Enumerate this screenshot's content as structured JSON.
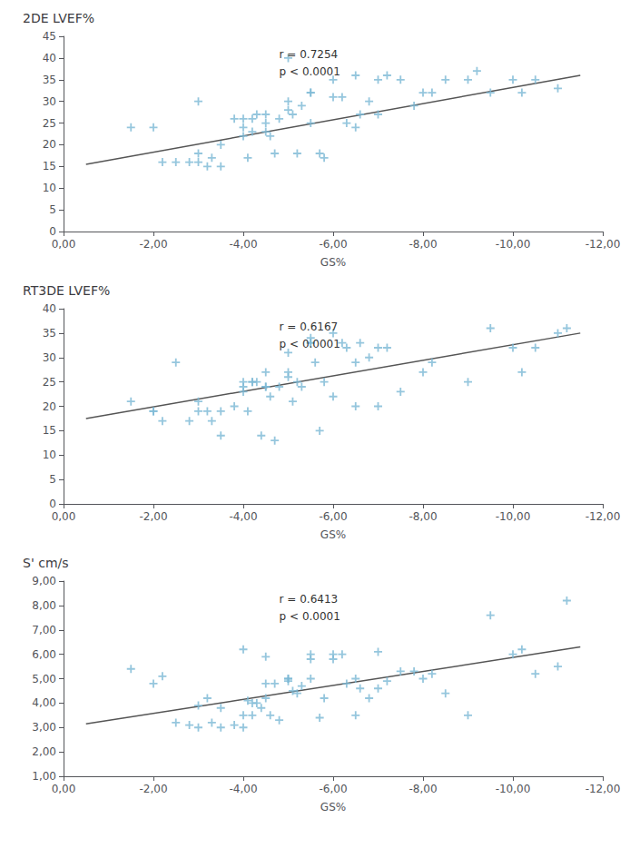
{
  "chart_data": [
    {
      "type": "scatter",
      "title": "2DE LVEF%",
      "xlabel": "GS%",
      "annotations": [
        "r = 0.7254",
        "p < 0.0001"
      ],
      "xlim": [
        0,
        -12
      ],
      "xticks": [
        {
          "value": 0,
          "label": "0,00"
        },
        {
          "value": -2,
          "label": "-2,00"
        },
        {
          "value": -4,
          "label": "-4,00"
        },
        {
          "value": -6,
          "label": "-6,00"
        },
        {
          "value": -8,
          "label": "-8,00"
        },
        {
          "value": -10,
          "label": "-10,00"
        },
        {
          "value": -12,
          "label": "-12,00"
        }
      ],
      "ylim": [
        0,
        45
      ],
      "yticks": [
        0,
        5,
        10,
        15,
        20,
        25,
        30,
        35,
        40,
        45
      ],
      "grid": false,
      "series": [
        {
          "type": "scatter",
          "marker": "plus",
          "color": "#7ab8d4",
          "x": [
            -1.5,
            -2.0,
            -2.2,
            -2.5,
            -2.8,
            -3.0,
            -3.0,
            -3.2,
            -3.3,
            -3.5,
            -3.8,
            -4.0,
            -4.0,
            -4.1,
            -4.2,
            -4.3,
            -4.5,
            -4.5,
            -4.6,
            -4.7,
            -4.8,
            -5.0,
            -5.0,
            -5.1,
            -5.2,
            -5.3,
            -5.5,
            -5.5,
            -5.7,
            -5.8,
            -6.0,
            -6.2,
            -6.3,
            -6.5,
            -6.6,
            -6.8,
            -7.0,
            -7.2,
            -7.5,
            -7.8,
            -8.0,
            -8.2,
            -8.5,
            -9.0,
            -9.2,
            -9.5,
            -10.0,
            -10.2,
            -10.5,
            -11.0,
            -3.5,
            -4.0,
            -4.5,
            -5.0,
            -5.5,
            -6.0,
            -6.5,
            -7.0,
            -3.0,
            -4.2
          ],
          "values": [
            24,
            24,
            16,
            16,
            16,
            16,
            18,
            15,
            17,
            15,
            26,
            26,
            24,
            17,
            26,
            27,
            27,
            25,
            22,
            18,
            26,
            28,
            30,
            27,
            18,
            29,
            32,
            25,
            18,
            17,
            35,
            31,
            25,
            36,
            27,
            30,
            35,
            36,
            35,
            29,
            32,
            32,
            35,
            35,
            37,
            32,
            35,
            32,
            35,
            33,
            20,
            22,
            23,
            40,
            32,
            31,
            24,
            27,
            30,
            23
          ]
        },
        {
          "type": "line",
          "color": "#555555",
          "x": [
            -0.5,
            -11.5
          ],
          "values": [
            15.5,
            36.0
          ]
        }
      ]
    },
    {
      "type": "scatter",
      "title": "RT3DE LVEF%",
      "xlabel": "GS%",
      "annotations": [
        "r = 0.6167",
        "p < 0.0001"
      ],
      "xlim": [
        0,
        -12
      ],
      "xticks": [
        {
          "value": 0,
          "label": "0,00"
        },
        {
          "value": -2,
          "label": "-2,00"
        },
        {
          "value": -4,
          "label": "-4,00"
        },
        {
          "value": -6,
          "label": "-6,00"
        },
        {
          "value": -8,
          "label": "-8,00"
        },
        {
          "value": -10,
          "label": "-10,00"
        },
        {
          "value": -12,
          "label": "-12,00"
        }
      ],
      "ylim": [
        0,
        40
      ],
      "yticks": [
        0,
        5,
        10,
        15,
        20,
        25,
        30,
        35,
        40
      ],
      "grid": false,
      "series": [
        {
          "type": "scatter",
          "marker": "plus",
          "color": "#7ab8d4",
          "x": [
            -1.5,
            -2.0,
            -2.0,
            -2.2,
            -2.5,
            -2.8,
            -3.0,
            -3.2,
            -3.3,
            -3.5,
            -3.8,
            -4.0,
            -4.0,
            -4.1,
            -4.2,
            -4.3,
            -4.4,
            -4.5,
            -4.5,
            -4.6,
            -4.7,
            -4.8,
            -5.0,
            -5.0,
            -5.1,
            -5.2,
            -5.3,
            -5.5,
            -5.5,
            -5.6,
            -5.7,
            -5.8,
            -6.0,
            -6.2,
            -6.3,
            -6.5,
            -6.6,
            -6.8,
            -7.0,
            -7.2,
            -7.5,
            -8.0,
            -8.2,
            -9.0,
            -9.5,
            -10.0,
            -10.2,
            -10.5,
            -11.0,
            -11.2,
            -3.5,
            -4.0,
            -4.5,
            -5.0,
            -5.5,
            -6.0,
            -6.5,
            -7.0,
            -3.0,
            -4.2
          ],
          "values": [
            21,
            19,
            19,
            17,
            29,
            17,
            21,
            19,
            17,
            19,
            20,
            24,
            23,
            19,
            25,
            25,
            14,
            24,
            24,
            22,
            13,
            24,
            31,
            27,
            21,
            25,
            24,
            33,
            34,
            29,
            15,
            25,
            35,
            33,
            32,
            29,
            33,
            30,
            32,
            32,
            23,
            27,
            29,
            25,
            36,
            32,
            27,
            32,
            35,
            36,
            14,
            25,
            27,
            26,
            33,
            22,
            20,
            20,
            19,
            25
          ]
        },
        {
          "type": "line",
          "color": "#555555",
          "x": [
            -0.5,
            -11.5
          ],
          "values": [
            17.5,
            35.0
          ]
        }
      ]
    },
    {
      "type": "scatter",
      "title": "S' cm/s",
      "xlabel": "GS%",
      "annotations": [
        "r = 0.6413",
        "p < 0.0001"
      ],
      "xlim": [
        0,
        -12
      ],
      "xticks": [
        {
          "value": 0,
          "label": "0,00"
        },
        {
          "value": -2,
          "label": "-2,00"
        },
        {
          "value": -4,
          "label": "-4,00"
        },
        {
          "value": -6,
          "label": "-6,00"
        },
        {
          "value": -8,
          "label": "-8,00"
        },
        {
          "value": -10,
          "label": "-10,00"
        },
        {
          "value": -12,
          "label": "-12,00"
        }
      ],
      "ylim": [
        1,
        9
      ],
      "yticks": [
        {
          "value": 1.0,
          "label": "1,00"
        },
        {
          "value": 2.0,
          "label": "2,00"
        },
        {
          "value": 3.0,
          "label": "3,00"
        },
        {
          "value": 4.0,
          "label": "4,00"
        },
        {
          "value": 5.0,
          "label": "5,00"
        },
        {
          "value": 6.0,
          "label": "6,00"
        },
        {
          "value": 7.0,
          "label": "7,00"
        },
        {
          "value": 8.0,
          "label": "8,00"
        },
        {
          "value": 9.0,
          "label": "9,00"
        }
      ],
      "grid": false,
      "series": [
        {
          "type": "scatter",
          "marker": "plus",
          "color": "#7ab8d4",
          "x": [
            -1.5,
            -2.0,
            -2.2,
            -2.5,
            -2.8,
            -3.0,
            -3.2,
            -3.3,
            -3.5,
            -3.8,
            -4.0,
            -4.0,
            -4.1,
            -4.2,
            -4.3,
            -4.4,
            -4.5,
            -4.5,
            -4.6,
            -4.7,
            -4.8,
            -5.0,
            -5.0,
            -5.1,
            -5.2,
            -5.3,
            -5.5,
            -5.5,
            -5.7,
            -5.8,
            -6.0,
            -6.2,
            -6.3,
            -6.5,
            -6.6,
            -6.8,
            -7.0,
            -7.2,
            -7.5,
            -7.8,
            -8.0,
            -8.2,
            -8.5,
            -9.0,
            -9.5,
            -10.0,
            -10.2,
            -10.5,
            -11.0,
            -11.2,
            -3.5,
            -4.0,
            -4.5,
            -5.0,
            -5.5,
            -6.0,
            -6.5,
            -7.0,
            -3.0,
            -4.2
          ],
          "values": [
            5.4,
            4.8,
            5.1,
            3.2,
            3.1,
            3.9,
            4.2,
            3.2,
            3.0,
            3.1,
            6.2,
            3.0,
            4.1,
            3.5,
            4.0,
            3.8,
            4.2,
            4.8,
            3.5,
            4.8,
            3.3,
            5.0,
            4.9,
            4.5,
            4.4,
            4.7,
            5.0,
            5.8,
            3.4,
            4.2,
            6.0,
            6.0,
            4.8,
            5.0,
            4.6,
            4.2,
            6.1,
            4.9,
            5.3,
            5.3,
            5.0,
            5.2,
            4.4,
            3.5,
            7.6,
            6.0,
            6.2,
            5.2,
            5.5,
            8.2,
            3.8,
            3.5,
            5.9,
            5.0,
            6.0,
            5.8,
            3.5,
            4.6,
            3.0,
            4.0
          ]
        },
        {
          "type": "line",
          "color": "#555555",
          "x": [
            -0.5,
            -11.5
          ],
          "values": [
            3.15,
            6.3
          ]
        }
      ]
    }
  ]
}
